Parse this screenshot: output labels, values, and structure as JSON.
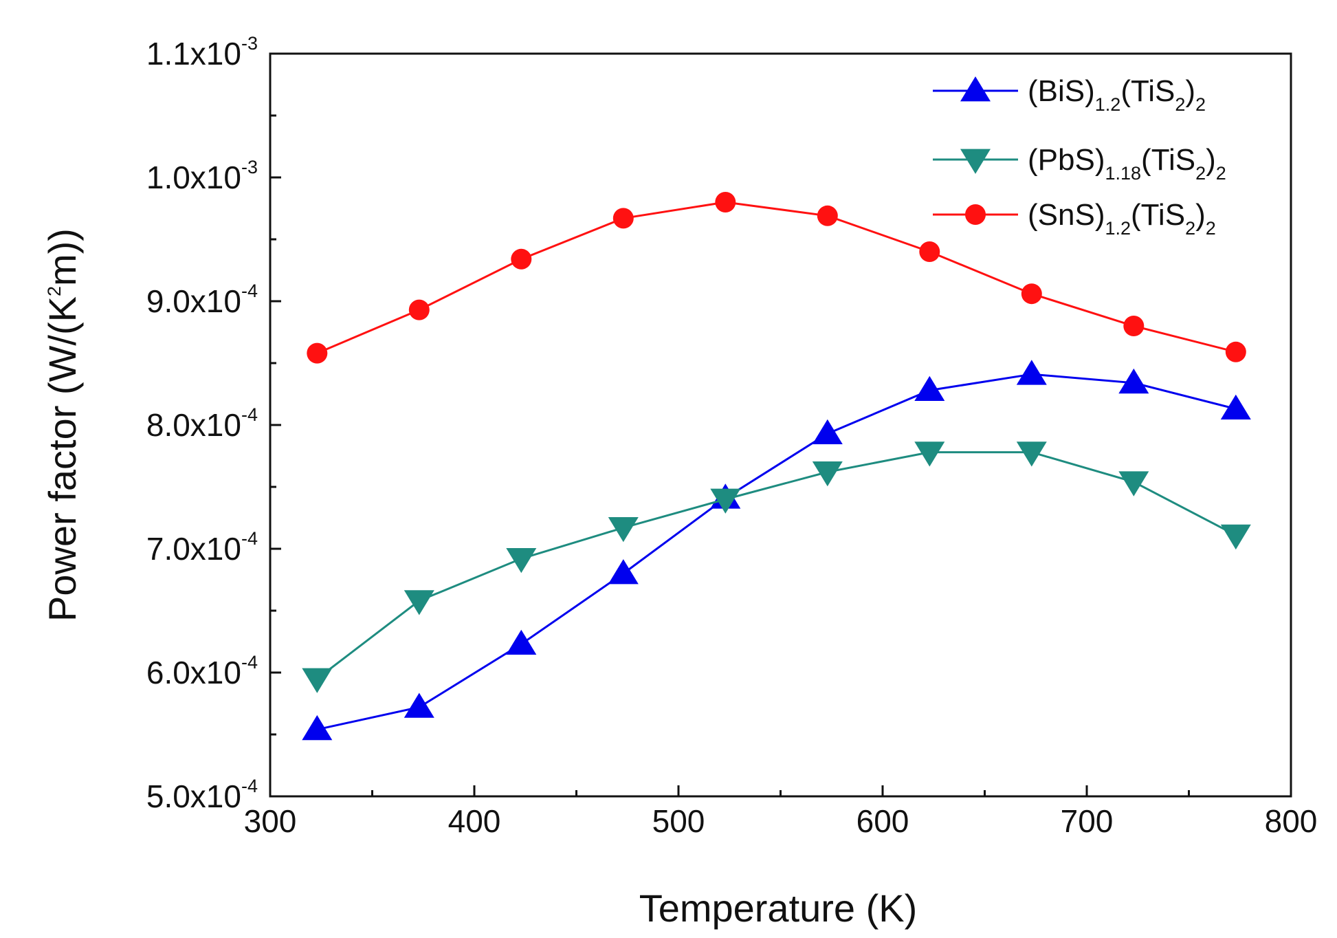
{
  "chart_data": {
    "type": "line",
    "title": "",
    "xlabel": "Temperature (K)",
    "ylabel": {
      "text": "Power factor (W/(K",
      "exponent": "2",
      "tail": "m))"
    },
    "xlim": [
      300,
      800
    ],
    "ylim": [
      0.0005,
      0.0011
    ],
    "grid": false,
    "legend_position": "top-right",
    "x_ticks": [
      {
        "value": 300,
        "label": "300"
      },
      {
        "value": 400,
        "label": "400"
      },
      {
        "value": 500,
        "label": "500"
      },
      {
        "value": 600,
        "label": "600"
      },
      {
        "value": 700,
        "label": "700"
      },
      {
        "value": 800,
        "label": "800"
      }
    ],
    "y_ticks": [
      {
        "value": 0.0005,
        "mantissa": "5.0x10",
        "exponent": "-4"
      },
      {
        "value": 0.0006,
        "mantissa": "6.0x10",
        "exponent": "-4"
      },
      {
        "value": 0.0007,
        "mantissa": "7.0x10",
        "exponent": "-4"
      },
      {
        "value": 0.0008,
        "mantissa": "8.0x10",
        "exponent": "-4"
      },
      {
        "value": 0.0009,
        "mantissa": "9.0x10",
        "exponent": "-4"
      },
      {
        "value": 0.001,
        "mantissa": "1.0x10",
        "exponent": "-3"
      },
      {
        "value": 0.0011,
        "mantissa": "1.1x10",
        "exponent": "-3"
      }
    ],
    "x": [
      323,
      373,
      423,
      473,
      523,
      573,
      623,
      673,
      723,
      773
    ],
    "series": [
      {
        "name": "(BiS)1.2(TiS2)2",
        "legend_parts": [
          {
            "text": "(BiS)",
            "sub": false
          },
          {
            "text": "1.2",
            "sub": true
          },
          {
            "text": "(TiS",
            "sub": false
          },
          {
            "text": "2",
            "sub": true
          },
          {
            "text": ")",
            "sub": false
          },
          {
            "text": "2",
            "sub": true
          }
        ],
        "color": "#0000ee",
        "marker": "triangle-up",
        "values": [
          0.000554,
          0.000572,
          0.000623,
          0.00068,
          0.000741,
          0.000793,
          0.000828,
          0.000841,
          0.000834,
          0.000813
        ]
      },
      {
        "name": "(PbS)1.18(TiS2)2",
        "legend_parts": [
          {
            "text": "(PbS)",
            "sub": false
          },
          {
            "text": "1.18",
            "sub": true
          },
          {
            "text": "(TiS",
            "sub": false
          },
          {
            "text": "2",
            "sub": true
          },
          {
            "text": ")",
            "sub": false
          },
          {
            "text": "2",
            "sub": true
          }
        ],
        "color": "#1e8c80",
        "marker": "triangle-down",
        "values": [
          0.000595,
          0.000658,
          0.000692,
          0.000717,
          0.00074,
          0.000762,
          0.000778,
          0.000778,
          0.000754,
          0.000711
        ]
      },
      {
        "name": "(SnS)1.2(TiS2)2",
        "legend_parts": [
          {
            "text": "(SnS)",
            "sub": false
          },
          {
            "text": "1.2",
            "sub": true
          },
          {
            "text": "(TiS",
            "sub": false
          },
          {
            "text": "2",
            "sub": true
          },
          {
            "text": ")",
            "sub": false
          },
          {
            "text": "2",
            "sub": true
          }
        ],
        "color": "#ff1111",
        "marker": "circle",
        "values": [
          0.000858,
          0.000893,
          0.000934,
          0.000967,
          0.00098,
          0.000969,
          0.00094,
          0.000906,
          0.00088,
          0.000859
        ]
      }
    ]
  }
}
